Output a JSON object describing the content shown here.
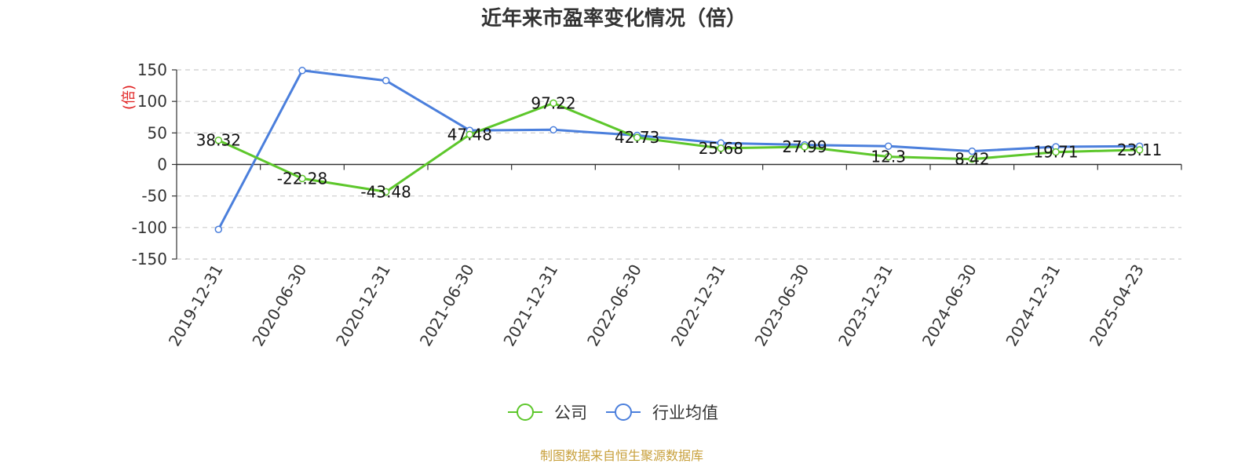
{
  "chart_data": {
    "type": "line",
    "title": "近年来市盈率变化情况（倍）",
    "ylabel": "(倍)",
    "ylim": [
      -150,
      150
    ],
    "yticks": [
      150,
      100,
      50,
      0,
      -50,
      -100,
      -150
    ],
    "grid": true,
    "legend_position": "bottom-center",
    "categories": [
      "2019-12-31",
      "2020-06-30",
      "2020-12-31",
      "2021-06-30",
      "2021-12-31",
      "2022-06-30",
      "2022-12-31",
      "2023-06-30",
      "2023-12-31",
      "2024-06-30",
      "2024-12-31",
      "2025-04-23"
    ],
    "series": [
      {
        "name": "公司",
        "color": "#5dc72b",
        "values": [
          38.32,
          -22.28,
          -43.48,
          47.48,
          97.22,
          42.73,
          25.68,
          27.99,
          12.3,
          8.42,
          19.71,
          23.11
        ],
        "labels": [
          "38.32",
          "-22.28",
          "-43.48",
          "47.48",
          "97.22",
          "42.73",
          "25.68",
          "27.99",
          "12.3",
          "8.42",
          "19.71",
          "23.11"
        ]
      },
      {
        "name": "行业均值",
        "color": "#4b7fdc",
        "values": [
          -103,
          149,
          133,
          54,
          55,
          46,
          34,
          31,
          29,
          21,
          28,
          29
        ]
      }
    ],
    "source": "制图数据来自恒生聚源数据库",
    "source_color": "#c8a03c",
    "ylabel_color": "#e02020",
    "grid_color": "#cccccc",
    "axis_color": "#333333"
  }
}
